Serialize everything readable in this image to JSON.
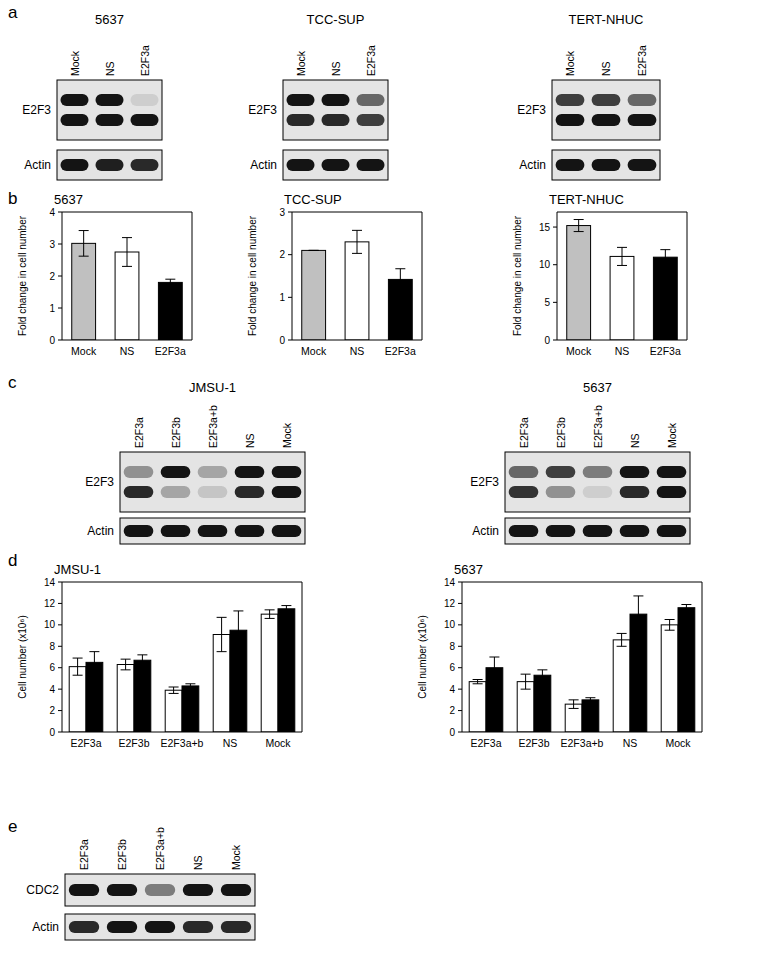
{
  "panel_labels": [
    "a",
    "b",
    "c",
    "d",
    "e"
  ],
  "blots": [
    {
      "title": "5637",
      "lanes": [
        "Mock",
        "NS",
        "E2F3a"
      ],
      "rows": [
        {
          "label": "E2F3",
          "bands": [
            [
              1,
              1,
              0.1
            ],
            [
              1,
              1,
              1
            ]
          ]
        },
        {
          "label": "Actin",
          "bands": [
            [
              1,
              0.95,
              0.9
            ]
          ]
        }
      ]
    },
    {
      "title": "TCC-SUP",
      "lanes": [
        "Mock",
        "NS",
        "E2F3a"
      ],
      "rows": [
        {
          "label": "E2F3",
          "bands": [
            [
              1,
              1,
              0.6
            ],
            [
              0.9,
              0.9,
              0.8
            ]
          ]
        },
        {
          "label": "Actin",
          "bands": [
            [
              1,
              1,
              1
            ]
          ]
        }
      ]
    },
    {
      "title": "TERT-NHUC",
      "lanes": [
        "Mock",
        "NS",
        "E2F3a"
      ],
      "rows": [
        {
          "label": "E2F3",
          "bands": [
            [
              0.8,
              0.8,
              0.6
            ],
            [
              1,
              1,
              1
            ]
          ]
        },
        {
          "label": "Actin",
          "bands": [
            [
              1,
              1,
              1
            ]
          ]
        }
      ]
    },
    {
      "title": "JMSU-1",
      "lanes": [
        "E2F3a",
        "E2F3b",
        "E2F3a+b",
        "NS",
        "Mock"
      ],
      "rows": [
        {
          "label": "E2F3",
          "bands": [
            [
              0.4,
              1,
              0.3,
              1,
              1
            ],
            [
              0.9,
              0.3,
              0.15,
              0.9,
              1
            ]
          ]
        },
        {
          "label": "Actin",
          "bands": [
            [
              1,
              1,
              1,
              1,
              1
            ]
          ]
        }
      ]
    },
    {
      "title": "5637",
      "lanes": [
        "E2F3a",
        "E2F3b",
        "E2F3a+b",
        "NS",
        "Mock"
      ],
      "rows": [
        {
          "label": "E2F3",
          "bands": [
            [
              0.6,
              0.8,
              0.5,
              1,
              1
            ],
            [
              0.85,
              0.4,
              0.1,
              0.9,
              1
            ]
          ]
        },
        {
          "label": "Actin",
          "bands": [
            [
              1,
              1,
              1,
              1,
              1
            ]
          ]
        }
      ]
    },
    {
      "lanes": [
        "E2F3a",
        "E2F3b",
        "E2F3a+b",
        "NS",
        "Mock"
      ],
      "rows": [
        {
          "label": "CDC2",
          "bands": [
            [
              1,
              1,
              0.5,
              1,
              1
            ]
          ]
        },
        {
          "label": "Actin",
          "bands": [
            [
              0.9,
              1,
              1,
              0.9,
              0.9
            ]
          ]
        }
      ]
    }
  ],
  "chart_data": [
    {
      "type": "bar",
      "title": "5637",
      "y_label": "Fold change in cell number",
      "categories": [
        "Mock",
        "NS",
        "E2F3a"
      ],
      "values": [
        3.02,
        2.75,
        1.8
      ],
      "errors": [
        0.4,
        0.45,
        0.1
      ],
      "colors": [
        "#c0c0c0",
        "#ffffff",
        "#000000"
      ],
      "ylim": [
        0,
        4
      ],
      "yticks": [
        0,
        1,
        2,
        3,
        4
      ],
      "grid": false
    },
    {
      "type": "bar",
      "title": "TCC-SUP",
      "y_label": "Fold change in cell number",
      "categories": [
        "Mock",
        "NS",
        "E2F3a"
      ],
      "values": [
        2.1,
        2.3,
        1.42
      ],
      "errors": [
        0.0,
        0.27,
        0.25
      ],
      "colors": [
        "#c0c0c0",
        "#ffffff",
        "#000000"
      ],
      "ylim": [
        0,
        3
      ],
      "yticks": [
        0,
        1,
        2,
        3
      ],
      "grid": false
    },
    {
      "type": "bar",
      "title": "TERT-NHUC",
      "y_label": "Fold change in cell number",
      "categories": [
        "Mock",
        "NS",
        "E2F3a"
      ],
      "values": [
        15.2,
        11.1,
        11.0
      ],
      "errors": [
        0.8,
        1.2,
        1.0
      ],
      "colors": [
        "#c0c0c0",
        "#ffffff",
        "#000000"
      ],
      "ylim": [
        0,
        17
      ],
      "yticks": [
        0,
        5,
        10,
        15
      ],
      "grid": false
    },
    {
      "type": "bar",
      "title": "JMSU-1",
      "y_label": "Cell number (x10⁶)",
      "categories": [
        "E2F3a",
        "E2F3b",
        "E2F3a+b",
        "NS",
        "Mock"
      ],
      "series": [
        {
          "color": "#ffffff",
          "values": [
            6.1,
            6.3,
            3.9,
            9.1,
            11.0
          ],
          "errors": [
            0.8,
            0.5,
            0.3,
            1.6,
            0.4
          ]
        },
        {
          "color": "#000000",
          "values": [
            6.5,
            6.7,
            4.3,
            9.5,
            11.5
          ],
          "errors": [
            1.0,
            0.5,
            0.2,
            1.8,
            0.3
          ]
        }
      ],
      "ylim": [
        0,
        14
      ],
      "yticks": [
        0,
        2,
        4,
        6,
        8,
        10,
        12,
        14
      ],
      "grid": false
    },
    {
      "type": "bar",
      "title": "5637",
      "y_label": "Cell number (x10⁶)",
      "categories": [
        "E2F3a",
        "E2F3b",
        "E2F3a+b",
        "NS",
        "Mock"
      ],
      "series": [
        {
          "color": "#ffffff",
          "values": [
            4.7,
            4.7,
            2.6,
            8.6,
            10.0
          ],
          "errors": [
            0.2,
            0.7,
            0.4,
            0.6,
            0.5
          ]
        },
        {
          "color": "#000000",
          "values": [
            6.0,
            5.3,
            3.0,
            11.0,
            11.6
          ],
          "errors": [
            1.0,
            0.5,
            0.2,
            1.7,
            0.3
          ]
        }
      ],
      "ylim": [
        0,
        14
      ],
      "yticks": [
        0,
        2,
        4,
        6,
        8,
        10,
        12,
        14
      ],
      "grid": false
    }
  ]
}
